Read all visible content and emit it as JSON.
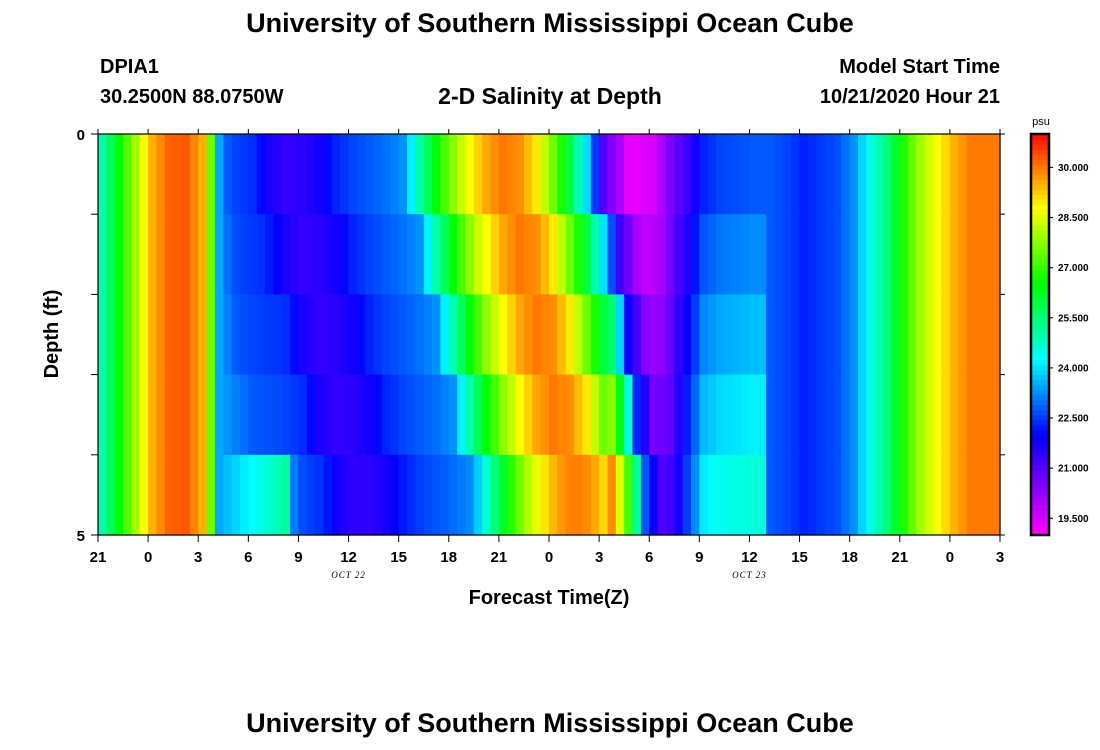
{
  "header": {
    "title": "University of Southern Mississippi Ocean Cube",
    "station_id": "DPIA1",
    "coordinates": "30.2500N 88.0750W",
    "model_start_label": "Model Start Time",
    "model_start_value": "10/21/2020 Hour 21"
  },
  "footer": {
    "title": "University of Southern Mississippi Ocean Cube"
  },
  "chart_data": {
    "type": "heatmap",
    "title": "2-D Salinity at Depth",
    "xlabel": "Forecast Time(Z)",
    "ylabel": "Depth (ft)",
    "x_ticks": [
      "21",
      "0",
      "3",
      "6",
      "9",
      "12",
      "15",
      "18",
      "21",
      "0",
      "3",
      "6",
      "9",
      "12",
      "15",
      "18",
      "21",
      "0",
      "3"
    ],
    "x_date_labels": [
      {
        "tick_index": 5,
        "label": "OCT 22"
      },
      {
        "tick_index": 13,
        "label": "OCT 23"
      }
    ],
    "x_hours": [
      0,
      54
    ],
    "y_ticks": [
      "0",
      "5"
    ],
    "ylim": [
      0,
      5
    ],
    "colorbar": {
      "unit": "psu",
      "range": [
        19.0,
        31.0
      ],
      "tick_labels": [
        "30.000",
        "28.500",
        "27.000",
        "25.500",
        "24.000",
        "22.500",
        "21.000",
        "19.500"
      ],
      "tick_values": [
        30.0,
        28.5,
        27.0,
        25.5,
        24.0,
        22.5,
        21.0,
        19.5
      ]
    },
    "depth_layers_ft": [
      0,
      1,
      2,
      3,
      4
    ],
    "surface_profile": {
      "hours": [
        0,
        1,
        2,
        3,
        4,
        5,
        6,
        6.5,
        7,
        7.5,
        8,
        9,
        10,
        11,
        12,
        13,
        14,
        15,
        16,
        17,
        18,
        19,
        20,
        21,
        22,
        23,
        24,
        25,
        26,
        27,
        28,
        29,
        30,
        31,
        31.5,
        32,
        33,
        34,
        35,
        36,
        37,
        38,
        39,
        40,
        41,
        42,
        43,
        44,
        45,
        46,
        47,
        48,
        49,
        50,
        51,
        52,
        53,
        54
      ],
      "values": [
        25.0,
        26.5,
        28.0,
        29.5,
        30.2,
        30.3,
        29.5,
        27.5,
        23.5,
        22.8,
        22.6,
        22.4,
        21.7,
        21.4,
        21.5,
        21.8,
        22.3,
        22.6,
        22.8,
        23.0,
        23.3,
        25.0,
        26.5,
        27.8,
        28.8,
        29.6,
        30.0,
        29.8,
        29.0,
        27.5,
        26.0,
        24.0,
        21.0,
        20.0,
        19.3,
        19.3,
        19.5,
        20.5,
        21.3,
        22.3,
        22.6,
        22.7,
        22.8,
        22.8,
        22.6,
        22.3,
        22.5,
        22.7,
        23.3,
        24.5,
        25.5,
        26.8,
        28.0,
        28.8,
        29.5,
        30.0,
        30.0,
        30.0
      ]
    },
    "transition_onset_hours_by_layer": [
      6.6,
      7.6,
      8.6,
      9.6,
      10.8
    ]
  }
}
